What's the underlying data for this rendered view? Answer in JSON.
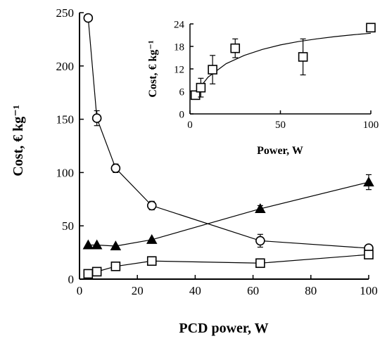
{
  "chart_data": [
    {
      "type": "line",
      "xlabel": "PCD power, W",
      "ylabel": "Cost, € kg⁻¹",
      "xlim": [
        0,
        100
      ],
      "ylim": [
        0,
        250
      ],
      "xticks": [
        0,
        20,
        40,
        60,
        80,
        100
      ],
      "yticks": [
        0,
        50,
        100,
        150,
        200,
        250
      ],
      "grid": false,
      "series": [
        {
          "marker": "open-circle",
          "x": [
            3,
            6,
            12.5,
            25,
            62.5,
            100
          ],
          "y": [
            245,
            151,
            104,
            69,
            36,
            29
          ],
          "err": [
            0,
            7,
            4,
            4,
            6,
            0
          ]
        },
        {
          "marker": "filled-triangle",
          "x": [
            3,
            6,
            12.5,
            25,
            62.5,
            100
          ],
          "y": [
            32,
            32,
            31,
            37,
            66,
            91
          ],
          "err": [
            0,
            0,
            0,
            0,
            3,
            7
          ]
        },
        {
          "marker": "open-square",
          "x": [
            3,
            6,
            12.5,
            25,
            62.5,
            100
          ],
          "y": [
            5,
            7,
            12,
            17,
            15,
            23
          ],
          "err": [
            0,
            0,
            0,
            2,
            4,
            3
          ]
        }
      ]
    },
    {
      "type": "scatter",
      "inset": true,
      "xlabel": "Power, W",
      "ylabel": "Cost, € kg⁻¹",
      "xlim": [
        0,
        100
      ],
      "ylim": [
        0,
        24
      ],
      "xticks": [
        0,
        50,
        100
      ],
      "yticks": [
        0,
        6,
        12,
        18,
        24
      ],
      "grid": false,
      "series": [
        {
          "marker": "open-square",
          "x": [
            3,
            6,
            12.5,
            25,
            62.5,
            100
          ],
          "y": [
            5,
            7,
            11.8,
            17.5,
            15.2,
            23
          ],
          "err": [
            0,
            2.5,
            3.8,
            2.5,
            4.8,
            0.5
          ]
        }
      ],
      "fit_curve": {
        "x": [
          3,
          10,
          20,
          30,
          40,
          50,
          60,
          70,
          80,
          90,
          100
        ],
        "y": [
          5.5,
          9.8,
          13.4,
          15.6,
          17.2,
          18.4,
          19.3,
          20.0,
          20.6,
          21.1,
          21.5
        ]
      }
    }
  ]
}
